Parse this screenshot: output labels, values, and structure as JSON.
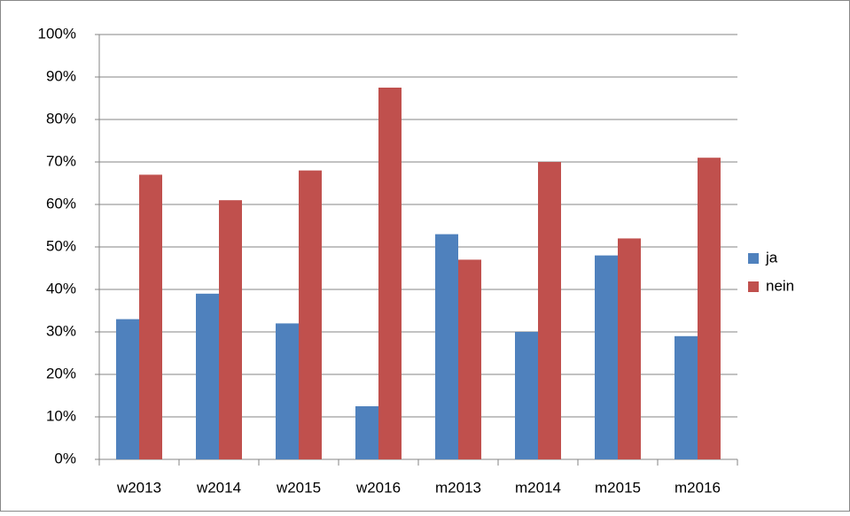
{
  "chart_data": {
    "type": "bar",
    "categories": [
      "w2013",
      "w2014",
      "w2015",
      "w2016",
      "m2013",
      "m2014",
      "m2015",
      "m2016"
    ],
    "series": [
      {
        "name": "ja",
        "color": "#4f81bd",
        "values": [
          33,
          39,
          32,
          12.5,
          53,
          30,
          48,
          29
        ]
      },
      {
        "name": "nein",
        "color": "#c0504d",
        "values": [
          67,
          61,
          68,
          87.5,
          47,
          70,
          52,
          71
        ]
      }
    ],
    "ylim": [
      0,
      100
    ],
    "yticks": [
      {
        "value": 0,
        "label": "0%"
      },
      {
        "value": 10,
        "label": "10%"
      },
      {
        "value": 20,
        "label": "20%"
      },
      {
        "value": 30,
        "label": "30%"
      },
      {
        "value": 40,
        "label": "40%"
      },
      {
        "value": 50,
        "label": "50%"
      },
      {
        "value": 60,
        "label": "60%"
      },
      {
        "value": 70,
        "label": "70%"
      },
      {
        "value": 80,
        "label": "80%"
      },
      {
        "value": 90,
        "label": "90%"
      },
      {
        "value": 100,
        "label": "100%"
      }
    ],
    "grid": true,
    "legend": "right"
  }
}
